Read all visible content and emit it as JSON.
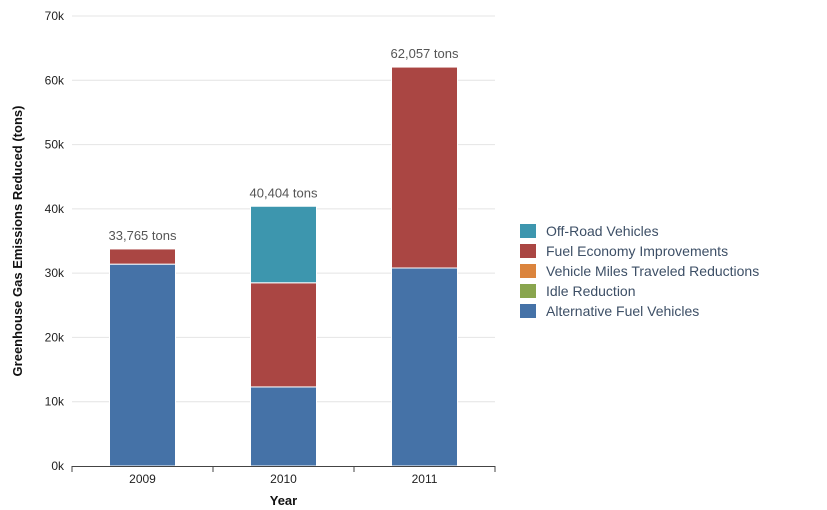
{
  "chart_data": {
    "type": "bar",
    "stacked": true,
    "categories": [
      "2009",
      "2010",
      "2011"
    ],
    "series": [
      {
        "name": "Alternative Fuel Vehicles",
        "color": "#4572a7",
        "values": [
          31400,
          12300,
          30800
        ]
      },
      {
        "name": "Idle Reduction",
        "color": "#89a54e",
        "values": [
          0,
          0,
          0
        ]
      },
      {
        "name": "Vehicle Miles Traveled Reductions",
        "color": "#db843d",
        "values": [
          0,
          0,
          0
        ]
      },
      {
        "name": "Fuel Economy Improvements",
        "color": "#aa4643",
        "values": [
          2365,
          16200,
          31257
        ]
      },
      {
        "name": "Off-Road Vehicles",
        "color": "#3d96ae",
        "values": [
          0,
          11904,
          0
        ]
      }
    ],
    "totals": [
      "33,765 tons",
      "40,404 tons",
      "62,057 tons"
    ],
    "xlabel": "Year",
    "ylabel": "Greenhouse Gas Emissions Reduced (tons)",
    "ylim": [
      0,
      70000
    ],
    "yticks": [
      0,
      10000,
      20000,
      30000,
      40000,
      50000,
      60000,
      70000
    ],
    "ytick_labels": [
      "0k",
      "10k",
      "20k",
      "30k",
      "40k",
      "50k",
      "60k",
      "70k"
    ],
    "grid": true,
    "legend_position": "right",
    "legend_order": [
      "Off-Road Vehicles",
      "Fuel Economy Improvements",
      "Vehicle Miles Traveled Reductions",
      "Idle Reduction",
      "Alternative Fuel Vehicles"
    ]
  }
}
